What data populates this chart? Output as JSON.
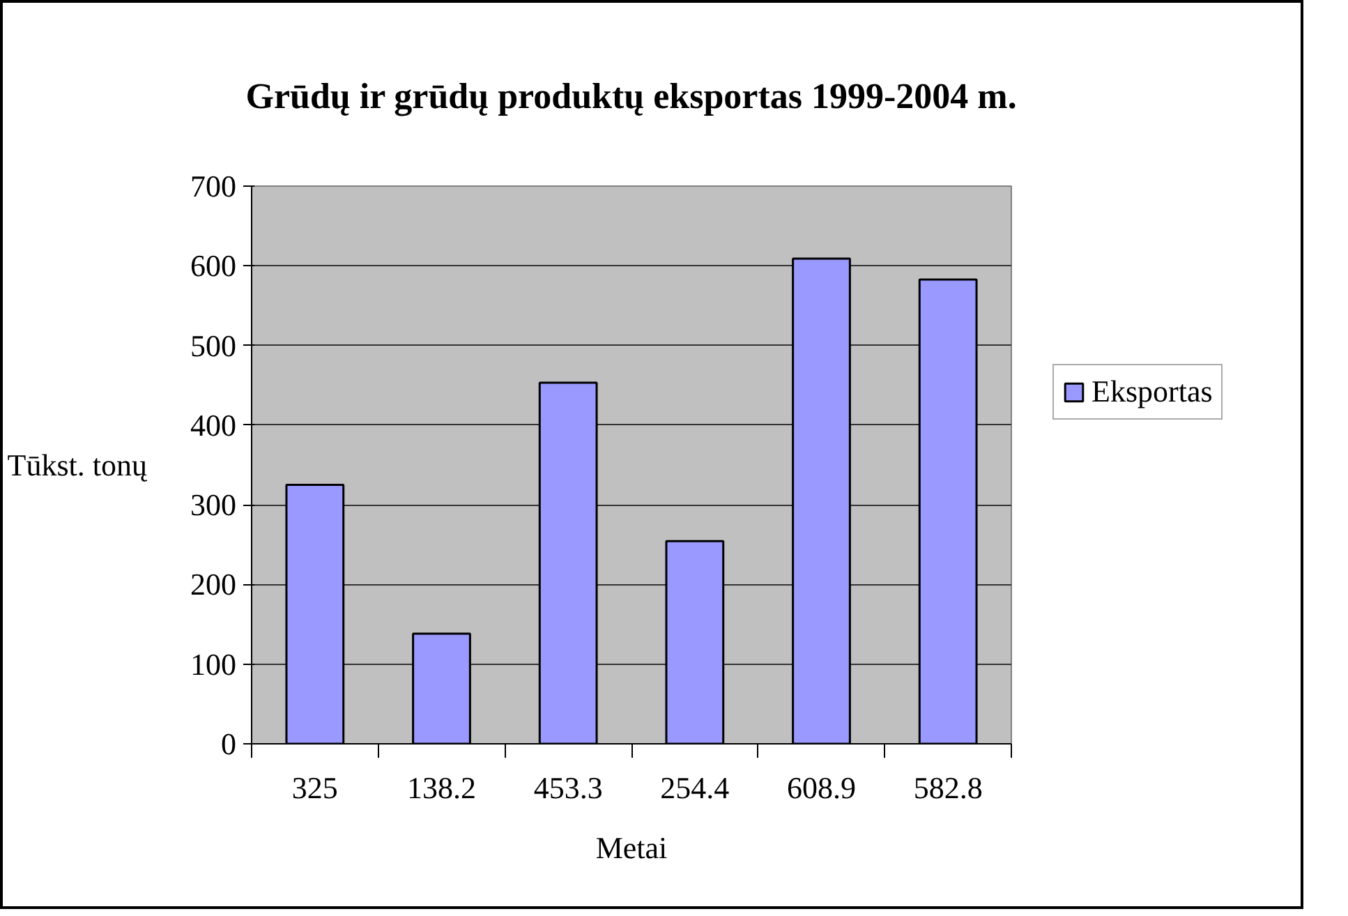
{
  "chart_data": {
    "type": "bar",
    "title": "Grūdų ir grūdų produktų eksportas 1999-2004 m.",
    "xlabel": "Metai",
    "ylabel": "Tūkst. tonų",
    "categories": [
      "325",
      "138.2",
      "453.3",
      "254.4",
      "608.9",
      "582.8"
    ],
    "series": [
      {
        "name": "Eksportas",
        "color": "#9999ff",
        "values": [
          325,
          138.2,
          453.3,
          254.4,
          608.9,
          582.8
        ]
      }
    ],
    "ylim": [
      0,
      700
    ],
    "yticks": [
      0,
      100,
      200,
      300,
      400,
      500,
      600,
      700
    ],
    "grid": "y",
    "legend": "right"
  }
}
